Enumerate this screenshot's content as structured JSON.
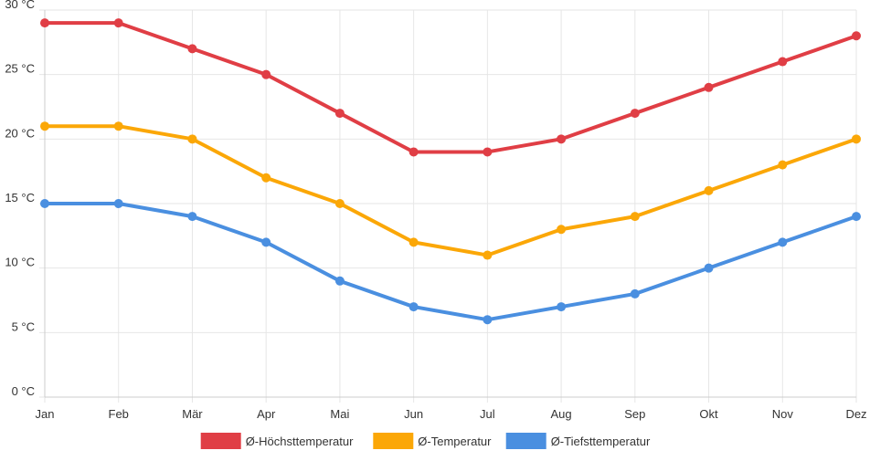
{
  "chart_data": {
    "type": "line",
    "categories": [
      "Jan",
      "Feb",
      "Mär",
      "Apr",
      "Mai",
      "Jun",
      "Jul",
      "Aug",
      "Sep",
      "Okt",
      "Nov",
      "Dez"
    ],
    "ylim": [
      0,
      30
    ],
    "y_ticks": [
      0,
      5,
      10,
      15,
      20,
      25,
      30
    ],
    "y_unit": " °C",
    "grid": true,
    "legend_position": "bottom",
    "series": [
      {
        "name": "Ø-Höchsttemperatur",
        "color": "#e03e45",
        "values": [
          29,
          29,
          27,
          25,
          22,
          19,
          19,
          20,
          22,
          24,
          26,
          28
        ]
      },
      {
        "name": "Ø-Temperatur",
        "color": "#fba707",
        "values": [
          21,
          21,
          20,
          17,
          15,
          12,
          11,
          13,
          14,
          16,
          18,
          20
        ]
      },
      {
        "name": "Ø-Tiefsttemperatur",
        "color": "#4a8fe0",
        "values": [
          15,
          15,
          14,
          12,
          9,
          7,
          6,
          7,
          8,
          10,
          12,
          14
        ]
      }
    ]
  }
}
